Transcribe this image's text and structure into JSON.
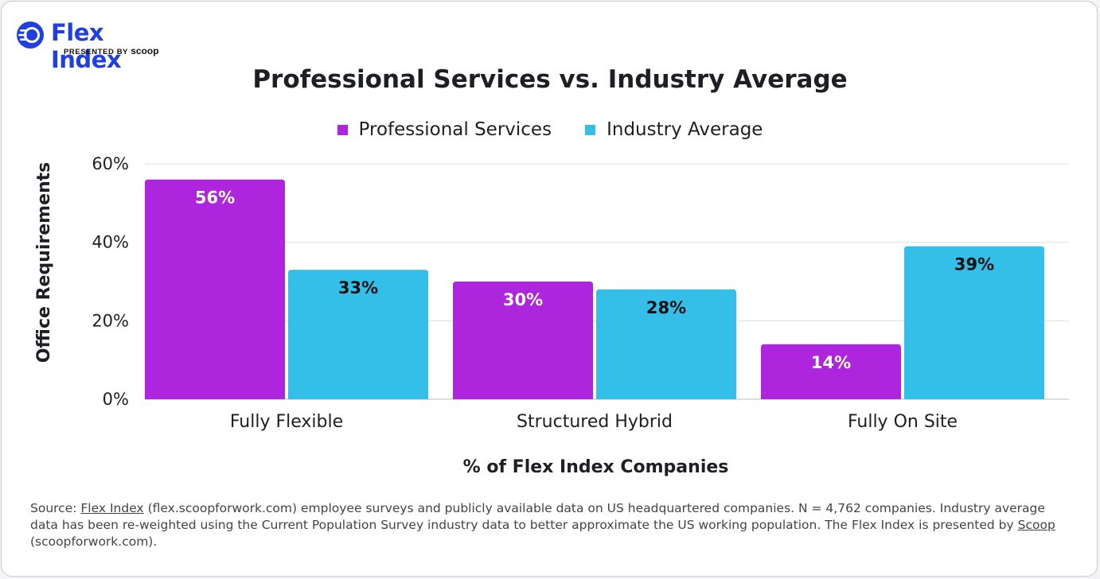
{
  "logo": {
    "title": "Flex Index",
    "presented_by": "PRESENTED BY",
    "brand": "scoop",
    "color": "#1f3fe0"
  },
  "chart_data": {
    "type": "bar",
    "title": "Professional Services vs. Industry Average",
    "xlabel": "% of Flex Index Companies",
    "ylabel": "Office Requirements",
    "categories": [
      "Fully Flexible",
      "Structured Hybrid",
      "Fully On Site"
    ],
    "series": [
      {
        "name": "Professional Services",
        "values": [
          56,
          30,
          14
        ],
        "labels": [
          "56%",
          "30%",
          "14%"
        ],
        "color": "#ad26dd",
        "label_color": "#ffffff"
      },
      {
        "name": "Industry Average",
        "values": [
          33,
          28,
          39
        ],
        "labels": [
          "33%",
          "28%",
          "39%"
        ],
        "color": "#33bfe8",
        "label_color": "#111111"
      }
    ],
    "ylim": [
      0,
      60
    ],
    "yticks": [
      0,
      20,
      40,
      60
    ],
    "ytick_labels": [
      "0%",
      "20%",
      "40%",
      "60%"
    ],
    "grid": true,
    "legend": "top-center"
  },
  "source": {
    "prefix": "Source: ",
    "link1": "Flex Index",
    "middle": " (flex.scoopforwork.com) employee surveys and publicly available data on US headquartered companies. N = 4,762 companies. Industry average data has been re-weighted using the Current Population Survey industry data to better approximate the US working population. The Flex Index is presented by ",
    "link2": "Scoop",
    "suffix": " (scoopforwork.com)."
  }
}
